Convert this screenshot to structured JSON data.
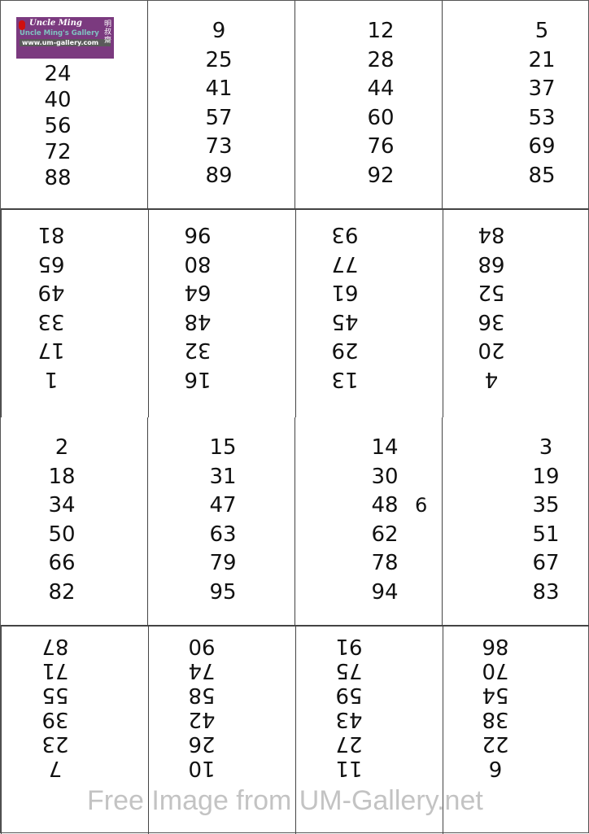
{
  "cards": [
    {
      "numbers": [
        "",
        "24",
        "40",
        "56",
        "72",
        "88"
      ],
      "flipped": false
    },
    {
      "numbers": [
        "9",
        "25",
        "41",
        "57",
        "73",
        "89"
      ],
      "flipped": false
    },
    {
      "numbers": [
        "12",
        "28",
        "44",
        "60",
        "76",
        "92"
      ],
      "flipped": false
    },
    {
      "numbers": [
        "5",
        "21",
        "37",
        "53",
        "69",
        "85"
      ],
      "flipped": false
    },
    {
      "numbers": [
        "1",
        "17",
        "33",
        "49",
        "65",
        "81"
      ],
      "flipped": true
    },
    {
      "numbers": [
        "16",
        "32",
        "48",
        "64",
        "80",
        "96"
      ],
      "flipped": true
    },
    {
      "numbers": [
        "13",
        "29",
        "45",
        "61",
        "77",
        "93"
      ],
      "flipped": true
    },
    {
      "numbers": [
        "4",
        "20",
        "36",
        "52",
        "68",
        "84"
      ],
      "flipped": true
    },
    {
      "numbers": [
        "2",
        "18",
        "34",
        "50",
        "66",
        "82"
      ],
      "flipped": false
    },
    {
      "numbers": [
        "15",
        "31",
        "47",
        "63",
        "79",
        "95"
      ],
      "flipped": false
    },
    {
      "numbers": [
        "14",
        "30",
        "48",
        "62",
        "78",
        "94"
      ],
      "flipped": false,
      "overlay": {
        "index": 2,
        "text": "6"
      }
    },
    {
      "numbers": [
        "3",
        "19",
        "35",
        "51",
        "67",
        "83"
      ],
      "flipped": false
    },
    {
      "numbers": [
        "7",
        "23",
        "39",
        "55",
        "71",
        "87"
      ],
      "flipped": true
    },
    {
      "numbers": [
        "10",
        "26",
        "42",
        "58",
        "74",
        "90"
      ],
      "flipped": true
    },
    {
      "numbers": [
        "11",
        "27",
        "43",
        "59",
        "75",
        "91"
      ],
      "flipped": true
    },
    {
      "numbers": [
        "6",
        "22",
        "38",
        "54",
        "70",
        "86"
      ],
      "flipped": true
    }
  ],
  "logo": {
    "brand": "Uncle Ming",
    "name": "Uncle Ming's Gallery",
    "url": "www.um-gallery.com",
    "chinese": "明叔齋",
    "color": "#7b3a7f"
  },
  "watermark": "Free Image from UM-Gallery.net"
}
